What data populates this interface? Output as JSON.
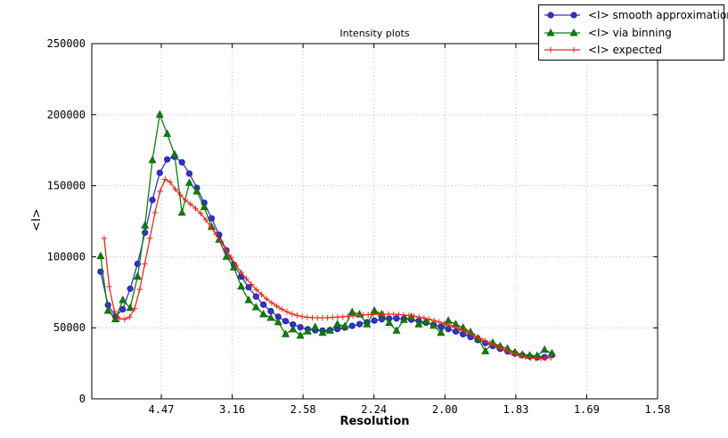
{
  "figure": {
    "background": "#ffffff",
    "frame_color": "#000000",
    "grid_color": "#b8b8b8"
  },
  "chart_data": {
    "type": "line",
    "title": "Intensity plots",
    "xlabel": "Resolution",
    "ylabel": "<I>",
    "x_axis": {
      "unit": "1/d^2 (resolution labels in Angstrom)",
      "range": [
        0.001,
        0.4
      ],
      "grid": true,
      "ticks": [
        {
          "pos": 0.05,
          "label": "4.47"
        },
        {
          "pos": 0.1,
          "label": "3.16"
        },
        {
          "pos": 0.15,
          "label": "2.58"
        },
        {
          "pos": 0.2,
          "label": "2.24"
        },
        {
          "pos": 0.25,
          "label": "2.00"
        },
        {
          "pos": 0.3,
          "label": "1.83"
        },
        {
          "pos": 0.35,
          "label": "1.69"
        },
        {
          "pos": 0.4,
          "label": "1.58"
        }
      ]
    },
    "y_axis": {
      "range": [
        0,
        250000
      ],
      "grid": true,
      "ticks": [
        {
          "pos": 0,
          "label": "0"
        },
        {
          "pos": 50000,
          "label": "50000"
        },
        {
          "pos": 100000,
          "label": "100000"
        },
        {
          "pos": 150000,
          "label": "150000"
        },
        {
          "pos": 200000,
          "label": "200000"
        },
        {
          "pos": 250000,
          "label": "250000"
        }
      ]
    },
    "legend_position": "top-right, outside plot, overlapping top frame",
    "series": [
      {
        "name": "<I> smooth approximation",
        "color": "#3333cc",
        "edge_color": "#1a1aa6",
        "marker": "circle",
        "s_start": 0.00723,
        "s_step": 0.005217,
        "values": [
          89500,
          66000,
          58000,
          63000,
          77500,
          95000,
          117000,
          140000,
          159000,
          168500,
          170300,
          166500,
          158500,
          148500,
          138000,
          127000,
          115500,
          104500,
          94500,
          86000,
          78500,
          72000,
          66300,
          61700,
          57800,
          54700,
          52300,
          50400,
          49000,
          48200,
          48000,
          48300,
          49100,
          50100,
          51300,
          52600,
          53900,
          55100,
          56000,
          56500,
          56600,
          56300,
          55700,
          54800,
          53600,
          52200,
          50700,
          49100,
          47400,
          45500,
          43500,
          41400,
          39300,
          37200,
          35200,
          33400,
          31900,
          30700,
          29800,
          29200,
          29300,
          30800
        ]
      },
      {
        "name": "<I> via binning",
        "color": "#0e7d0e",
        "edge_color": "#0a5c0a",
        "marker": "triangle-up",
        "s_start": 0.00723,
        "s_step": 0.005217,
        "values": [
          100500,
          62000,
          56000,
          69500,
          64000,
          86000,
          122000,
          168000,
          200000,
          186500,
          172000,
          131000,
          152000,
          146000,
          135000,
          121000,
          112000,
          100000,
          92500,
          79000,
          69500,
          64500,
          59500,
          57000,
          54000,
          45500,
          49000,
          44500,
          47500,
          50500,
          46500,
          48000,
          52500,
          51000,
          61000,
          59500,
          52500,
          62000,
          59500,
          53500,
          48000,
          55500,
          57500,
          52500,
          54500,
          51500,
          46500,
          55000,
          52500,
          50000,
          47000,
          42500,
          33500,
          39500,
          37000,
          35300,
          32800,
          31100,
          30500,
          30300,
          34500,
          32000
        ]
      },
      {
        "name": "<I> expected",
        "color": "#e8291c",
        "edge_color": "#e8291c",
        "marker": "plus",
        "s_start": 0.00974,
        "s_step": 0.00358,
        "values": [
          113000,
          79000,
          61500,
          56500,
          56000,
          57500,
          63500,
          77000,
          95000,
          113000,
          131000,
          146000,
          154500,
          152500,
          147500,
          143500,
          140000,
          137000,
          134000,
          130500,
          126000,
          121000,
          116000,
          110500,
          105000,
          99500,
          94000,
          89000,
          84500,
          80500,
          76800,
          73400,
          70300,
          67600,
          65200,
          63100,
          61300,
          59800,
          58700,
          57900,
          57400,
          57100,
          57000,
          57000,
          57100,
          57300,
          57500,
          57800,
          58100,
          58400,
          58700,
          59000,
          59200,
          59400,
          59500,
          59600,
          59600,
          59500,
          59300,
          59000,
          58600,
          58100,
          57500,
          56800,
          56000,
          55100,
          54100,
          53000,
          51800,
          50500,
          49100,
          47600,
          46000,
          44300,
          42600,
          40900,
          39200,
          37500,
          35800,
          34200,
          32700,
          31400,
          30300,
          29400,
          28800,
          28500,
          28400,
          28600,
          29000
        ]
      }
    ]
  }
}
